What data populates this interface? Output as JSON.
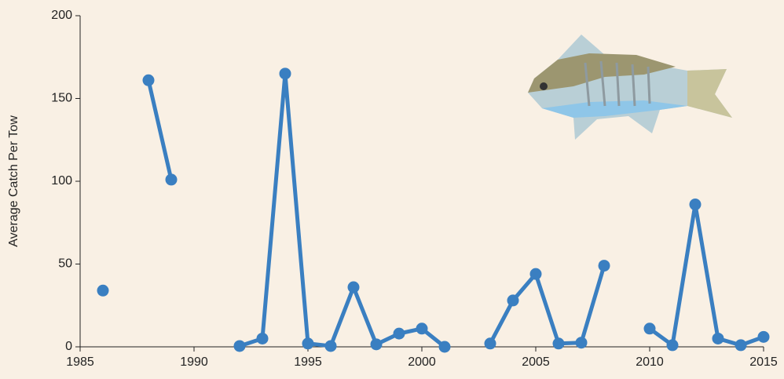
{
  "chart_data": {
    "type": "line",
    "y_label": "Average Catch Per Tow",
    "x": [
      1986,
      1987,
      1988,
      1989,
      1990,
      1991,
      1992,
      1993,
      1994,
      1995,
      1996,
      1997,
      1998,
      1999,
      2000,
      2001,
      2002,
      2003,
      2004,
      2005,
      2006,
      2007,
      2008,
      2009,
      2010,
      2011,
      2012,
      2013,
      2014,
      2015
    ],
    "series": [
      {
        "name": "Average Catch Per Tow",
        "color": "#3a7fc1",
        "values": [
          34,
          null,
          161,
          101,
          null,
          null,
          0.5,
          5,
          165,
          2,
          0.5,
          36,
          1.5,
          8,
          11,
          0,
          null,
          2,
          28,
          44,
          2,
          2.5,
          49,
          null,
          11,
          1,
          86,
          5,
          1,
          6
        ]
      }
    ],
    "xlim": [
      1985,
      2015
    ],
    "xticks": [
      1985,
      1990,
      1995,
      2000,
      2005,
      2010,
      2015
    ],
    "ylim": [
      0,
      200
    ],
    "yticks": [
      0,
      50,
      100,
      150,
      200
    ]
  }
}
